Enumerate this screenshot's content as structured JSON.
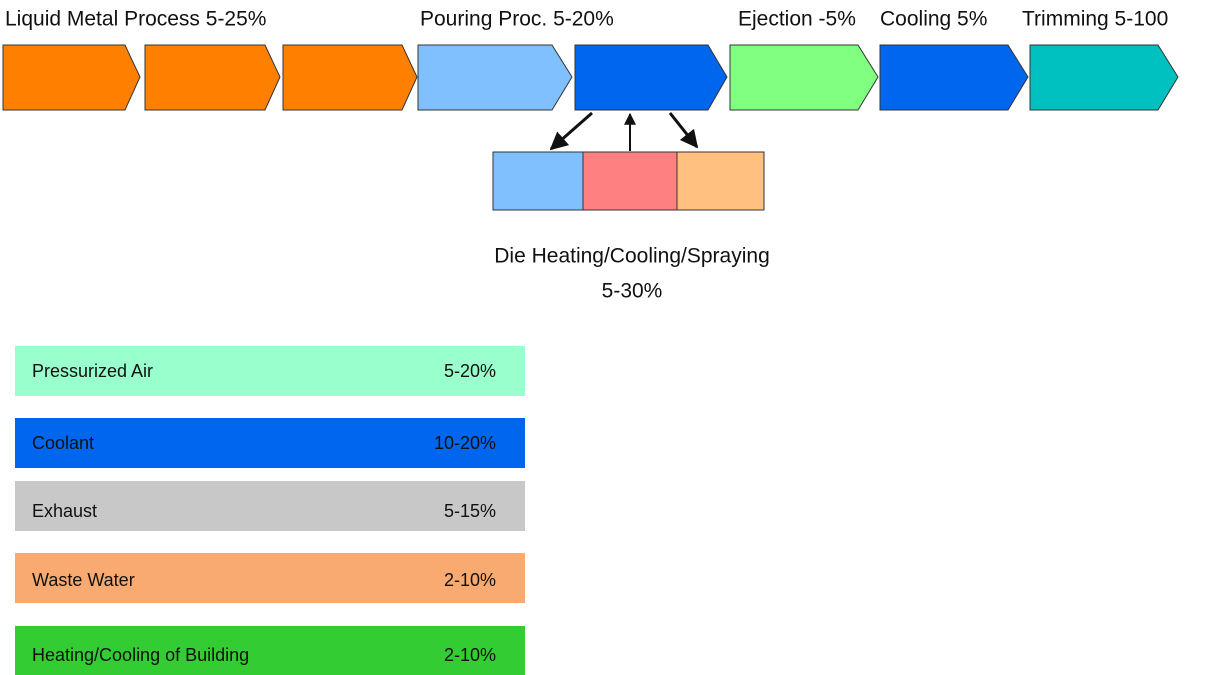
{
  "stages": [
    {
      "label": "Liquid Metal Process 5-25%"
    },
    {
      "label": "Pouring Proc. 5-20%"
    },
    {
      "label": "Ejection -5%"
    },
    {
      "label": "Cooling 5%"
    },
    {
      "label": "Trimming 5-100"
    }
  ],
  "die": {
    "label": "Die Heating/Cooling/Spraying",
    "share": "5-30%"
  },
  "consumers": [
    {
      "name": "Pressurized Air",
      "share": "5-20%"
    },
    {
      "name": "Coolant",
      "share": "10-20%"
    },
    {
      "name": "Exhaust",
      "share": "5-15%"
    },
    {
      "name": "Waste Water",
      "share": "2-10%"
    },
    {
      "name": "Heating/Cooling of Building",
      "share": "2-10%"
    }
  ]
}
